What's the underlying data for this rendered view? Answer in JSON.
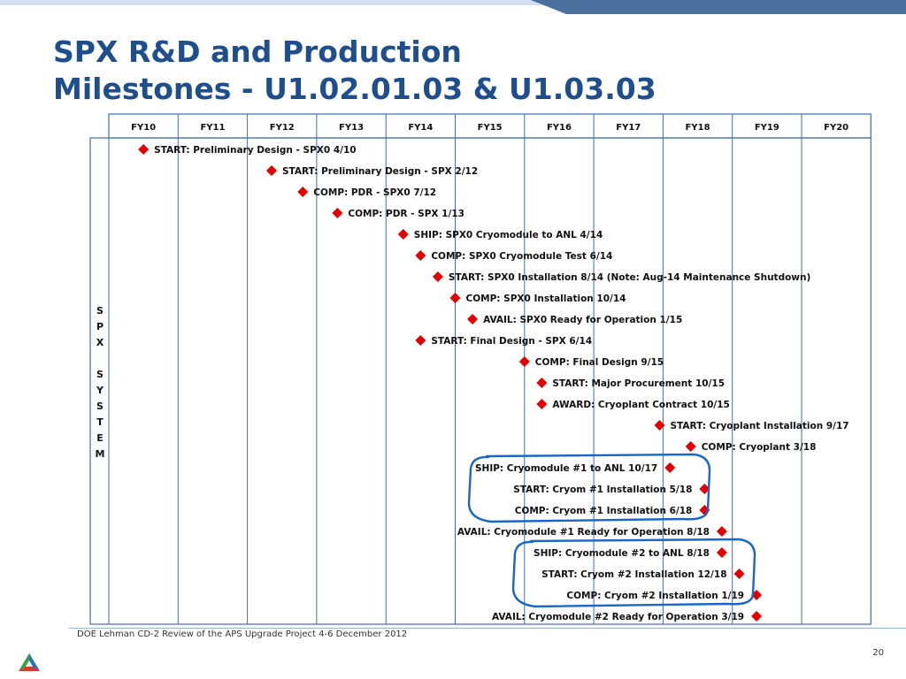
{
  "slide": {
    "title_line1": "SPX R&D and Production",
    "title_line2": "Milestones - U1.02.01.03 & U1.03.03",
    "footer": "DOE Lehman CD-2 Review of the APS Upgrade Project    4-6 December  2012",
    "page_number": "20",
    "side_label_top": [
      "S",
      "P",
      "X"
    ],
    "side_label_bottom": [
      "S",
      "Y",
      "S",
      "T",
      "E",
      "M"
    ]
  },
  "colors": {
    "title": "#1f4e8c",
    "grid": "#3c6fb0",
    "milestone": "#e00000",
    "annotation": "#1a66c8",
    "band_dark": "#4a6f9c",
    "band_light": "#d2dfee"
  },
  "chart_data": {
    "type": "table",
    "fiscal_years": [
      "FY10",
      "FY11",
      "FY12",
      "FY13",
      "FY14",
      "FY15",
      "FY16",
      "FY17",
      "FY18",
      "FY19",
      "FY20"
    ],
    "milestones": [
      {
        "label": "START: Preliminary Design - SPX0 4/10",
        "date": 2010.5,
        "label_side": "right"
      },
      {
        "label": "START: Preliminary Design - SPX 2/12",
        "date": 2012.35,
        "label_side": "right"
      },
      {
        "label": "COMP: PDR - SPX0 7/12",
        "date": 2012.8,
        "label_side": "right"
      },
      {
        "label": "COMP: PDR - SPX 1/13",
        "date": 2013.3,
        "label_side": "right"
      },
      {
        "label": "SHIP: SPX0 Cryomodule to ANL 4/14",
        "date": 2014.25,
        "label_side": "right"
      },
      {
        "label": "COMP: SPX0 Cryomodule Test 6/14",
        "date": 2014.5,
        "label_side": "right"
      },
      {
        "label": "START: SPX0 Installation 8/14 (Note: Aug-14 Maintenance Shutdown)",
        "date": 2014.75,
        "label_side": "right"
      },
      {
        "label": "COMP: SPX0 Installation 10/14",
        "date": 2015.0,
        "label_side": "right"
      },
      {
        "label": "AVAIL: SPX0 Ready for Operation 1/15",
        "date": 2015.25,
        "label_side": "right"
      },
      {
        "label": "START: Final Design - SPX 6/14",
        "date": 2014.5,
        "label_side": "right"
      },
      {
        "label": "COMP: Final Design 9/15",
        "date": 2016.0,
        "label_side": "right"
      },
      {
        "label": "START: Major Procurement 10/15",
        "date": 2016.25,
        "label_side": "right"
      },
      {
        "label": "AWARD: Cryoplant Contract 10/15",
        "date": 2016.25,
        "label_side": "right"
      },
      {
        "label": "START: Cryoplant Installation 9/17",
        "date": 2017.95,
        "label_side": "right"
      },
      {
        "label": "COMP: Cryoplant 3/18",
        "date": 2018.4,
        "label_side": "right"
      },
      {
        "label": "SHIP: Cryomodule #1 to ANL 10/17",
        "date": 2018.1,
        "label_side": "left"
      },
      {
        "label": "START: Cryom #1 Installation 5/18",
        "date": 2018.6,
        "label_side": "left"
      },
      {
        "label": "COMP: Cryom #1 Installation 6/18",
        "date": 2018.6,
        "label_side": "left"
      },
      {
        "label": "AVAIL: Cryomodule #1 Ready for Operation 8/18",
        "date": 2018.85,
        "label_side": "left"
      },
      {
        "label": "SHIP: Cryomodule #2 to ANL 8/18",
        "date": 2018.85,
        "label_side": "left"
      },
      {
        "label": "START: Cryom #2 Installation 12/18",
        "date": 2019.1,
        "label_side": "left"
      },
      {
        "label": "COMP: Cryom #2 Installation 1/19",
        "date": 2019.35,
        "label_side": "left"
      },
      {
        "label": "AVAIL: Cryomodule #2 Ready for Operation 3/19",
        "date": 2019.35,
        "label_side": "left"
      }
    ],
    "annotations": [
      {
        "shape": "hand-drawn-loop",
        "rows": [
          15,
          17
        ]
      },
      {
        "shape": "hand-drawn-loop",
        "rows": [
          19,
          21
        ]
      }
    ]
  }
}
